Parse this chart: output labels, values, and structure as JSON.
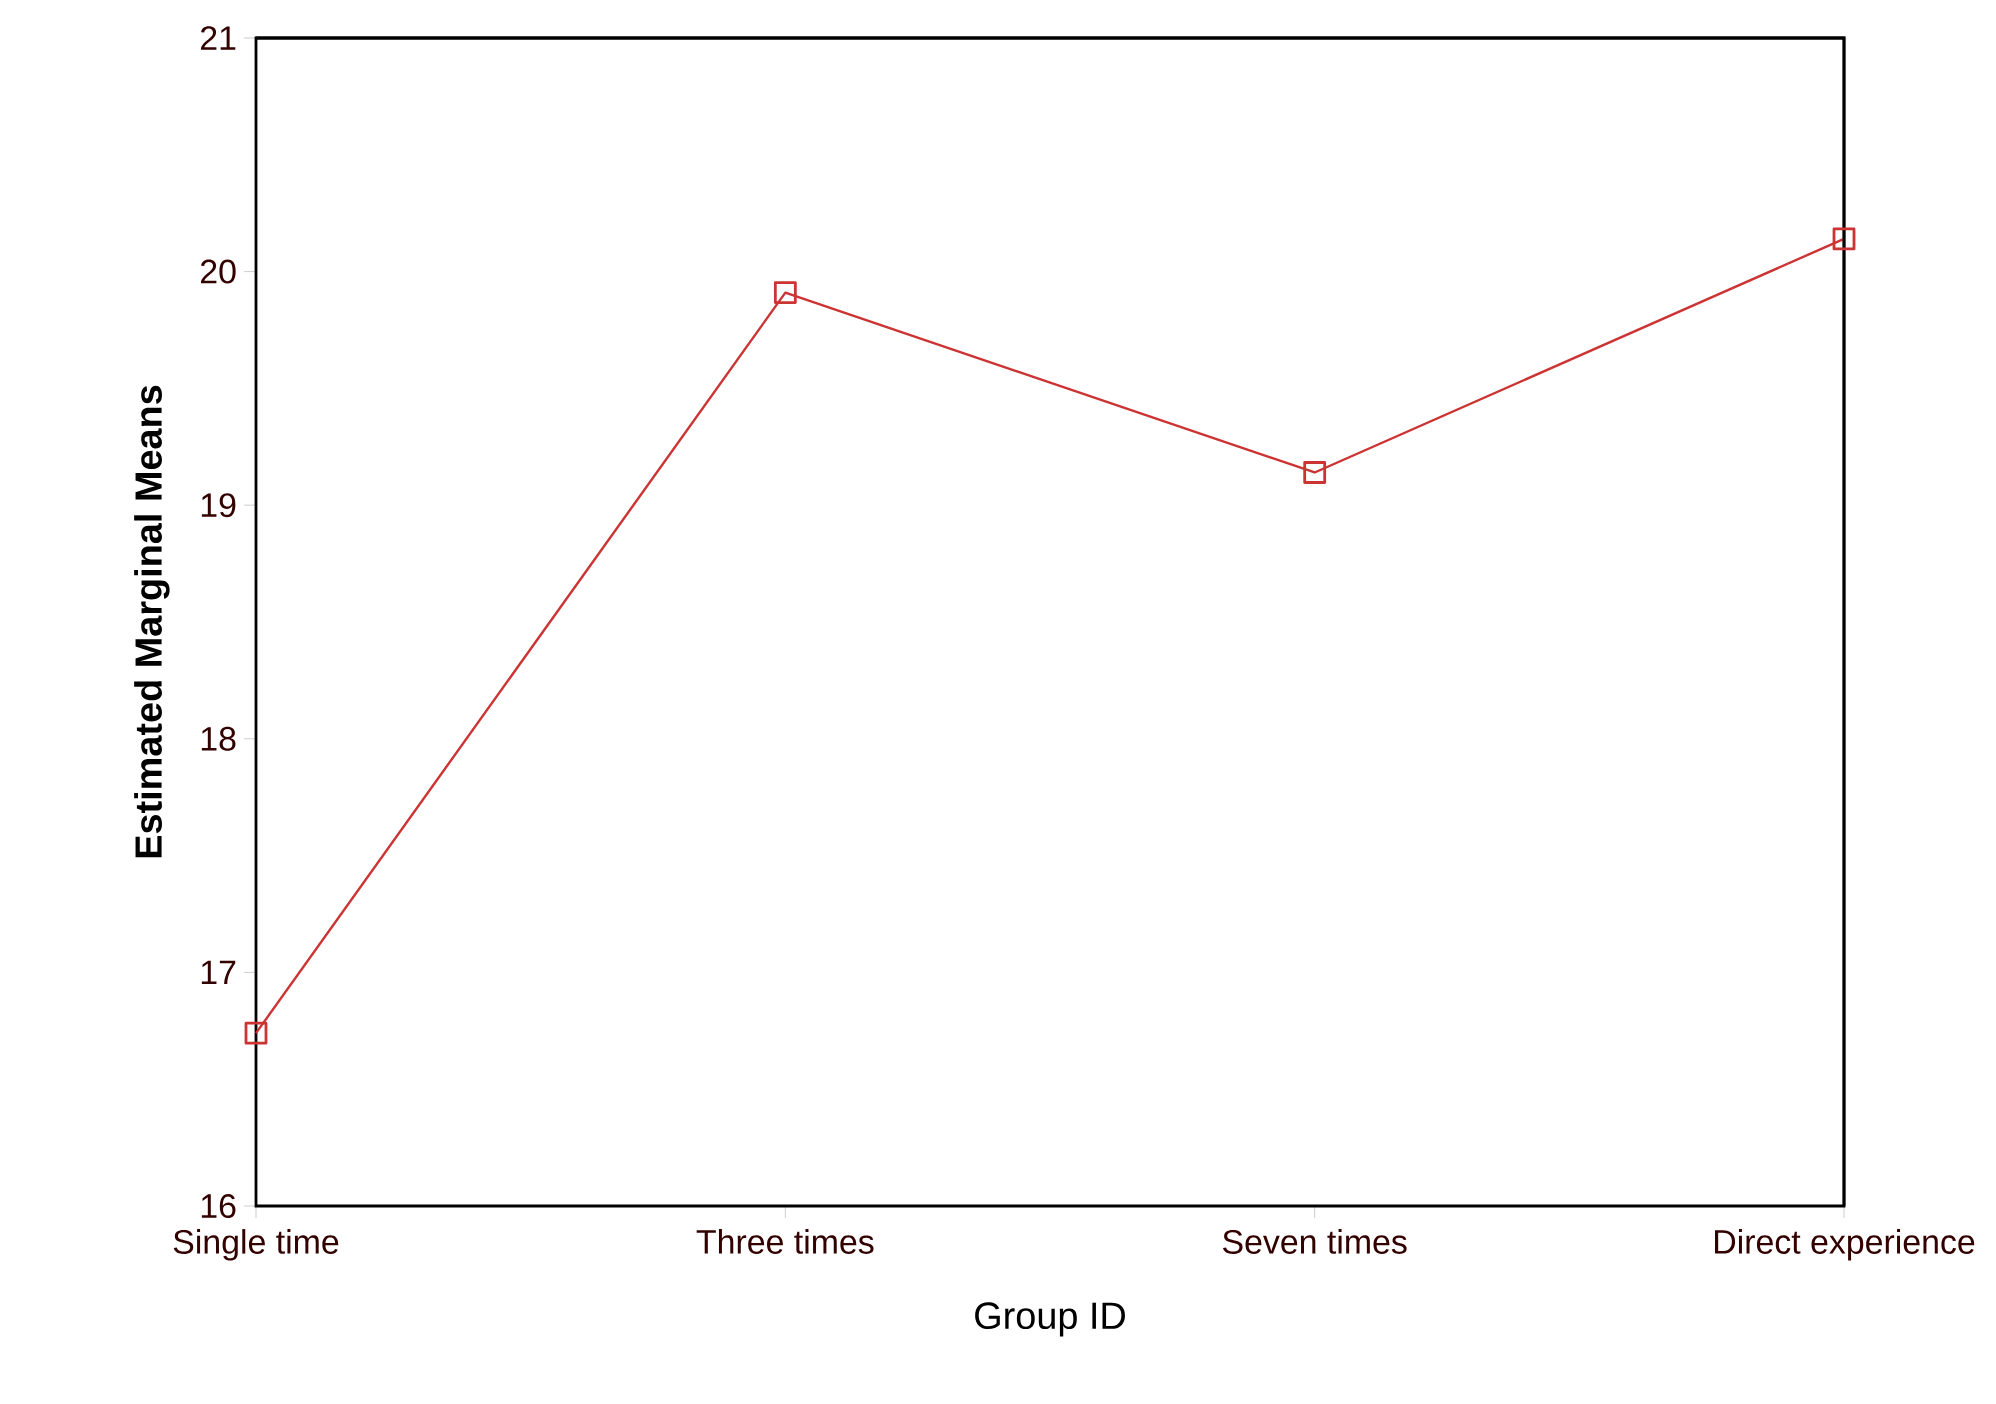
{
  "chart_data": {
    "type": "line",
    "xlabel": "Group ID",
    "ylabel": "Estimated Marginal Means",
    "categories": [
      "Single time",
      "Three times",
      "Seven times",
      "Direct experience"
    ],
    "series": [
      {
        "color": "#cc3333",
        "values": [
          16.74,
          19.91,
          19.14,
          20.14
        ]
      }
    ],
    "ylim": [
      16,
      21
    ],
    "yticks": [
      16,
      17,
      18,
      19,
      20,
      21
    ],
    "marker": "square",
    "line_style": "solid",
    "grid": false
  }
}
